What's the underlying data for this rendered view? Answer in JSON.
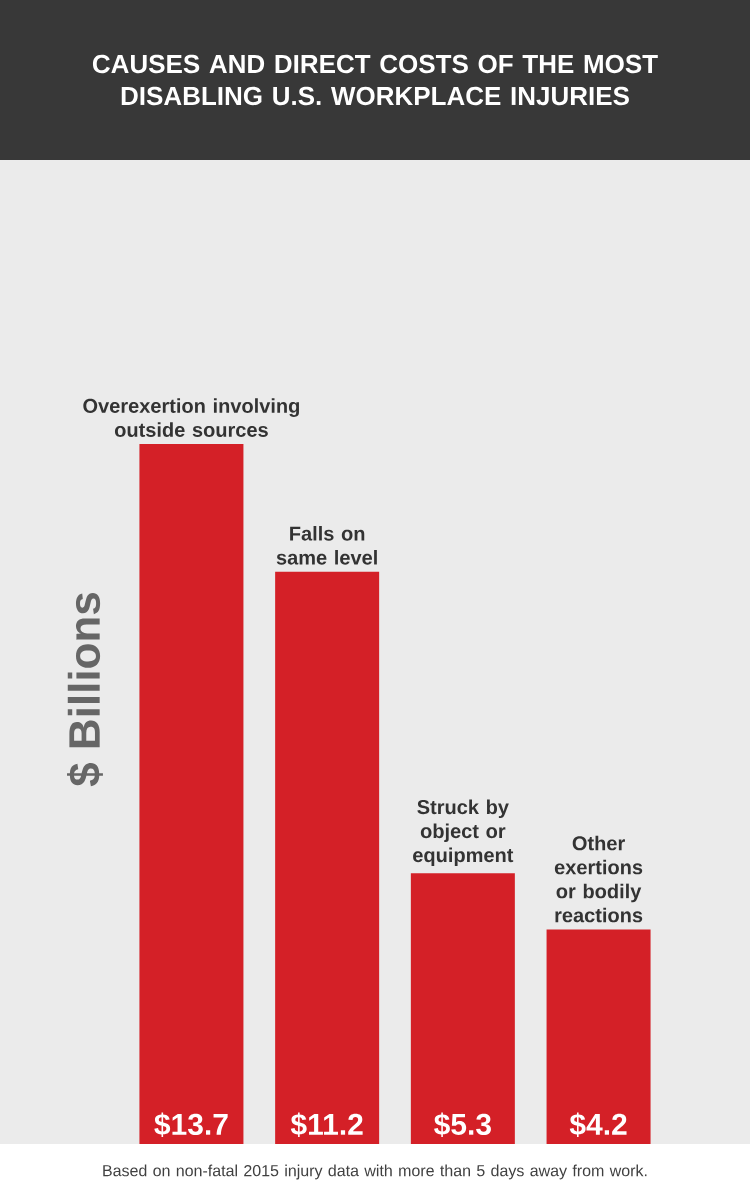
{
  "chart_data": {
    "type": "bar",
    "title": "CAUSES AND DIRECT COSTS OF THE MOST DISABLING U.S. WORKPLACE INJURIES",
    "ylabel": "$ Billions",
    "categories": [
      "Overexertion involving outside sources",
      "Falls on same level",
      "Struck by object or equipment",
      "Other exertions or bodily reactions"
    ],
    "values": [
      13.7,
      11.2,
      5.3,
      4.2
    ],
    "value_labels": [
      "$13.7",
      "$11.2",
      "$5.3",
      "$4.2"
    ],
    "color": "#d42027",
    "annotations": [
      "Based on non-fatal 2015 injury data with more than 5 days away from work."
    ]
  }
}
